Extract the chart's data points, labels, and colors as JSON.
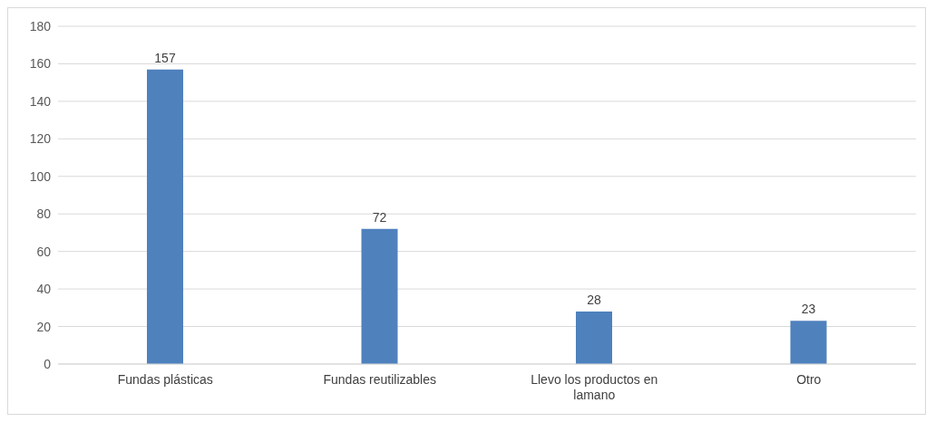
{
  "chart_data": {
    "type": "bar",
    "categories": [
      "Fundas plásticas",
      "Fundas reutilizables",
      "Llevo los productos en lamano",
      "Otro"
    ],
    "values": [
      157,
      72,
      28,
      23
    ],
    "color": "#4f81bd",
    "ylim": [
      0,
      180
    ],
    "yticks": [
      0,
      20,
      40,
      60,
      80,
      100,
      120,
      140,
      160,
      180
    ],
    "grid": "y",
    "data_labels": true
  }
}
